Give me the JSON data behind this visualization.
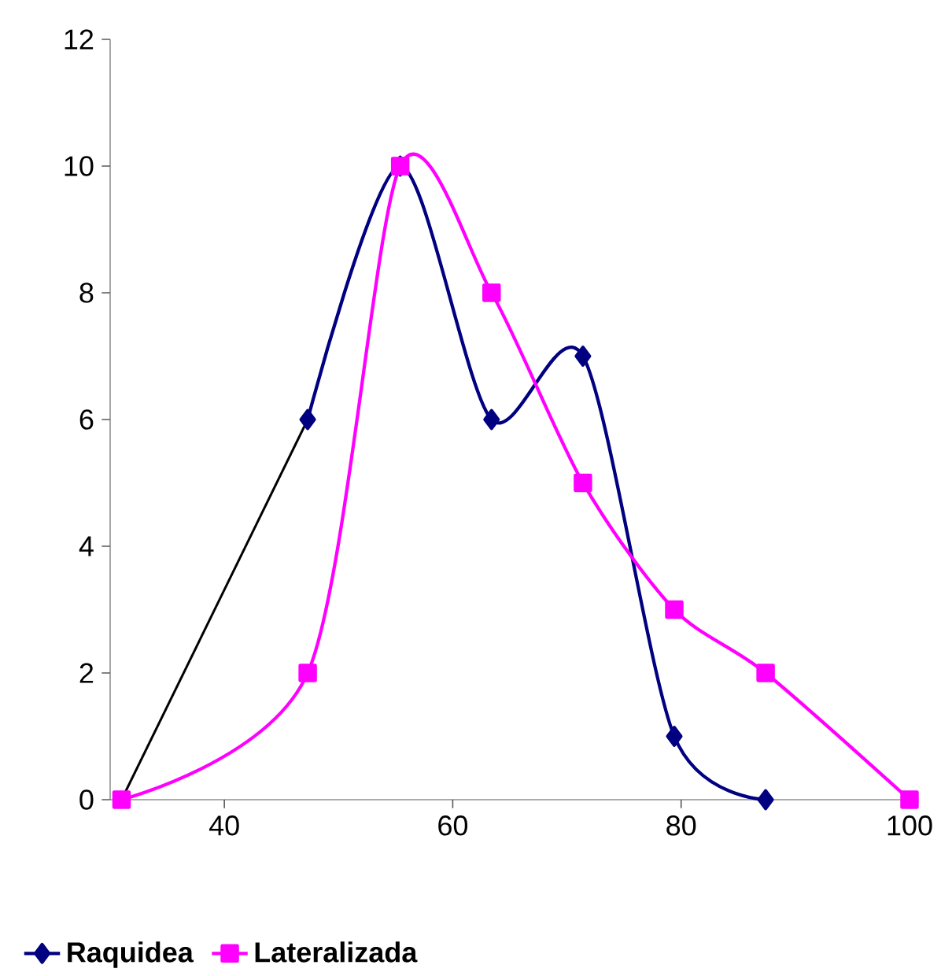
{
  "chart_data": {
    "type": "line",
    "xlim": [
      30,
      100
    ],
    "xticks": [
      40,
      60,
      80,
      100
    ],
    "ylim": [
      0,
      12
    ],
    "yticks": [
      0,
      2,
      4,
      6,
      8,
      10,
      12
    ],
    "legend": "bottom",
    "series": [
      {
        "color": "#000000",
        "marker": "none",
        "x": [
          31,
          47.3
        ],
        "values": [
          0,
          6
        ]
      },
      {
        "name": "Raquidea",
        "color": "#000080",
        "marker": "diamond",
        "x": [
          47.3,
          55.4,
          63.4,
          71.4,
          79.4,
          87.4
        ],
        "values": [
          6,
          10,
          6,
          7,
          1,
          0
        ]
      },
      {
        "name": "Lateralizada",
        "color": "#ff00ff",
        "marker": "square",
        "x": [
          31,
          47.3,
          55.4,
          63.4,
          71.4,
          79.4,
          87.4,
          100
        ],
        "values": [
          0,
          2,
          10,
          8,
          5,
          3,
          2,
          0
        ]
      }
    ]
  }
}
